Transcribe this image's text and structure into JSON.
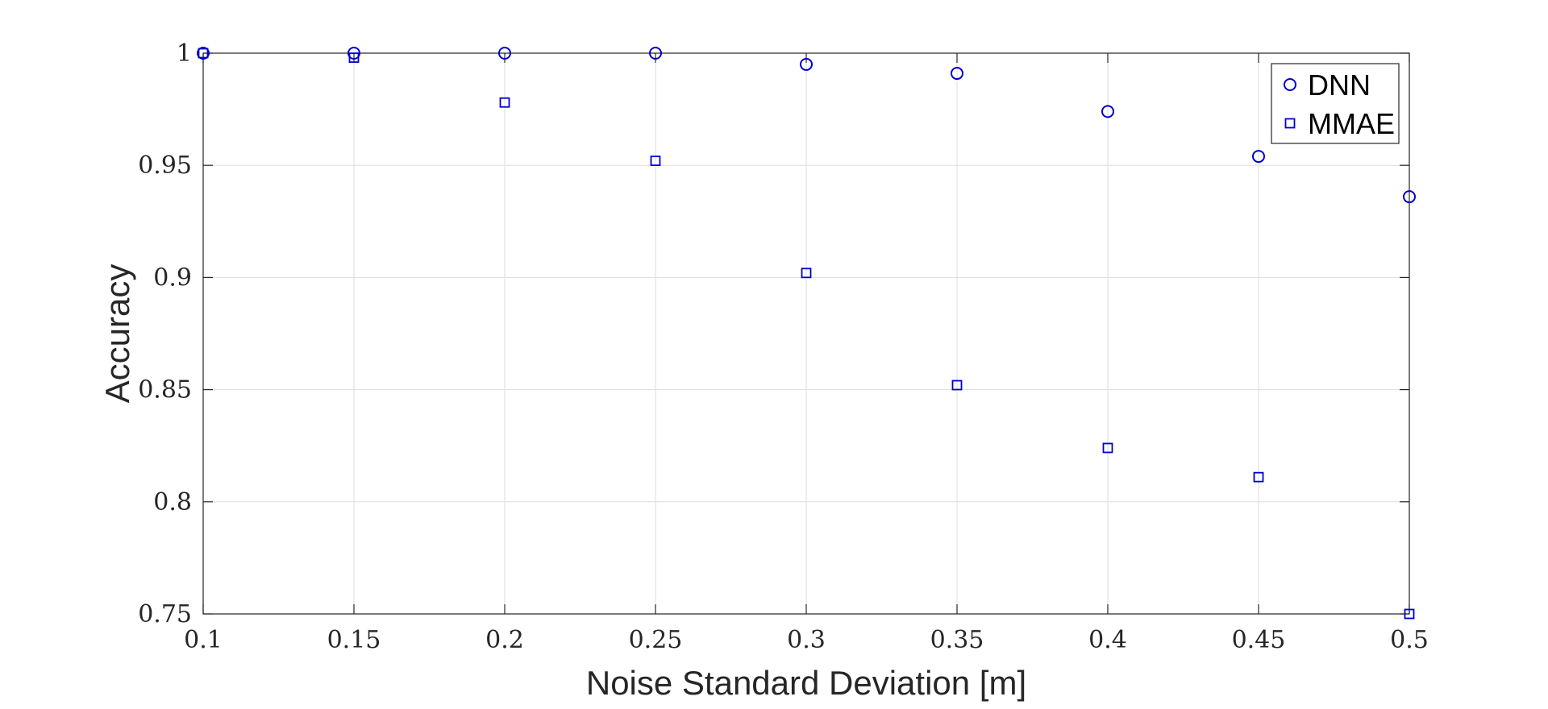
{
  "chart_data": {
    "type": "scatter",
    "title": "",
    "xlabel": "Noise Standard Deviation [m]",
    "ylabel": "Accuracy",
    "xlim": [
      0.1,
      0.5
    ],
    "ylim": [
      0.75,
      1
    ],
    "xticks": [
      0.1,
      0.15,
      0.2,
      0.25,
      0.3,
      0.35,
      0.4,
      0.45,
      0.5
    ],
    "xtick_labels": [
      "0.1",
      "0.15",
      "0.2",
      "0.25",
      "0.3",
      "0.35",
      "0.4",
      "0.45",
      "0.5"
    ],
    "yticks": [
      0.75,
      0.8,
      0.85,
      0.9,
      0.95,
      1
    ],
    "ytick_labels": [
      "0.75",
      "0.8",
      "0.85",
      "0.9",
      "0.95",
      "1"
    ],
    "grid": true,
    "legend_position": "top-right",
    "series": [
      {
        "name": "DNN",
        "marker": "circle",
        "color": "#0000CC",
        "x": [
          0.1,
          0.15,
          0.2,
          0.25,
          0.3,
          0.35,
          0.4,
          0.45,
          0.5
        ],
        "y": [
          1.0,
          1.0,
          1.0,
          1.0,
          0.995,
          0.991,
          0.974,
          0.954,
          0.936
        ]
      },
      {
        "name": "MMAE",
        "marker": "square",
        "color": "#0000CC",
        "x": [
          0.1,
          0.15,
          0.2,
          0.25,
          0.3,
          0.35,
          0.4,
          0.45,
          0.5
        ],
        "y": [
          1.0,
          0.998,
          0.978,
          0.952,
          0.902,
          0.852,
          0.824,
          0.811,
          0.75
        ]
      }
    ]
  }
}
